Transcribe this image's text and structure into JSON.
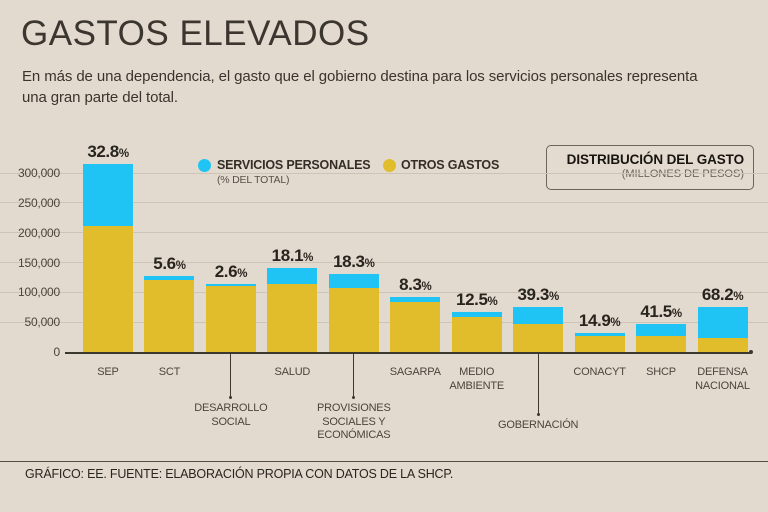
{
  "header": {
    "title": "GASTOS ELEVADOS",
    "subtitle_lines": [
      "En más de una dependencia, el gasto que el gobierno destina para los servicios personales representa",
      "una gran parte del total."
    ]
  },
  "legend": {
    "servicios": {
      "label": "SERVICIOS PERSONALES",
      "sublabel": "(% DEL TOTAL)",
      "color": "#1fc4f5"
    },
    "otros": {
      "label": "OTROS GASTOS",
      "color": "#e2bd2b"
    }
  },
  "info_box": {
    "title": "DISTRIBUCIÓN DEL GASTO",
    "subtitle": "(MILLONES DE PESOS)"
  },
  "colors": {
    "background": "#e3dacf",
    "bar_blue": "#1fc4f5",
    "bar_yellow": "#e2bd2b",
    "text_dark": "#332e27",
    "text_muted": "#4a443c",
    "gridline": "#cdc4b8",
    "axis": "#3d382f"
  },
  "chart_data": {
    "type": "bar",
    "stacked": true,
    "title": "DISTRIBUCIÓN DEL GASTO (MILLONES DE PESOS)",
    "units": "millones de pesos",
    "ylim": [
      0,
      320000
    ],
    "yticks": [
      0,
      50000,
      100000,
      150000,
      200000,
      250000,
      300000
    ],
    "ytick_labels": [
      "0",
      "50,000",
      "100,000",
      "150,000",
      "200,000",
      "250,000",
      "300,000"
    ],
    "grid": true,
    "legend_position": "top",
    "pct_suffix": "%",
    "series_names": [
      "SERVICIOS PERSONALES",
      "OTROS GASTOS"
    ],
    "categories": [
      "SEP",
      "SCT",
      "DESARROLLO SOCIAL",
      "SALUD",
      "PROVISIONES SOCIALES Y ECONÓMICAS",
      "SAGARPA",
      "MEDIO AMBIENTE",
      "GOBERNACIÓN",
      "CONACYT",
      "SHCP",
      "DEFENSA NACIONAL"
    ],
    "bars": [
      {
        "name": "SEP",
        "label_lines": [
          "SEP"
        ],
        "callout": false,
        "pct_label": "32.8",
        "servicios_personales_pct": 32.8,
        "total": 315000,
        "servicios_personales": 103320,
        "otros_gastos": 211680
      },
      {
        "name": "SCT",
        "label_lines": [
          "SCT"
        ],
        "callout": false,
        "pct_label": "5.6",
        "servicios_personales_pct": 5.6,
        "total": 127000,
        "servicios_personales": 7112,
        "otros_gastos": 119888
      },
      {
        "name": "DESARROLLO SOCIAL",
        "label_lines": [
          "DESARROLLO",
          "SOCIAL"
        ],
        "callout": true,
        "callout_depth": 45,
        "pct_label": "2.6",
        "servicios_personales_pct": 2.6,
        "total": 114000,
        "servicios_personales": 2964,
        "otros_gastos": 111036
      },
      {
        "name": "SALUD",
        "label_lines": [
          "SALUD"
        ],
        "callout": false,
        "pct_label": "18.1",
        "servicios_personales_pct": 18.1,
        "total": 140000,
        "servicios_personales": 25340,
        "otros_gastos": 114660
      },
      {
        "name": "PROVISIONES SOCIALES Y ECONÓMICAS",
        "label_lines": [
          "PROVISIONES",
          "SOCIALES Y",
          "ECONÓMICAS"
        ],
        "callout": true,
        "callout_depth": 45,
        "pct_label": "18.3",
        "servicios_personales_pct": 18.3,
        "total": 131000,
        "servicios_personales": 23973,
        "otros_gastos": 107027
      },
      {
        "name": "SAGARPA",
        "label_lines": [
          "SAGARPA"
        ],
        "callout": false,
        "pct_label": "8.3",
        "servicios_personales_pct": 8.3,
        "total": 92000,
        "servicios_personales": 7636,
        "otros_gastos": 84364
      },
      {
        "name": "MEDIO AMBIENTE",
        "label_lines": [
          "MEDIO",
          "AMBIENTE"
        ],
        "callout": false,
        "pct_label": "12.5",
        "servicios_personales_pct": 12.5,
        "total": 67000,
        "servicios_personales": 8375,
        "otros_gastos": 58625
      },
      {
        "name": "GOBERNACIÓN",
        "label_lines": [
          "GOBERNACIÓN"
        ],
        "callout": true,
        "callout_depth": 62,
        "pct_label": "39.3",
        "servicios_personales_pct": 39.3,
        "total": 76000,
        "servicios_personales": 29868,
        "otros_gastos": 46132
      },
      {
        "name": "CONACYT",
        "label_lines": [
          "CONACYT"
        ],
        "callout": false,
        "pct_label": "14.9",
        "servicios_personales_pct": 14.9,
        "total": 32000,
        "servicios_personales": 4768,
        "otros_gastos": 27232
      },
      {
        "name": "SHCP",
        "label_lines": [
          "SHCP"
        ],
        "callout": false,
        "pct_label": "41.5",
        "servicios_personales_pct": 41.5,
        "total": 47000,
        "servicios_personales": 19505,
        "otros_gastos": 27495
      },
      {
        "name": "DEFENSA NACIONAL",
        "label_lines": [
          "DEFENSA",
          "NACIONAL"
        ],
        "callout": false,
        "pct_label": "68.2",
        "servicios_personales_pct": 68.2,
        "total": 75000,
        "servicios_personales": 51150,
        "otros_gastos": 23850
      }
    ]
  },
  "footer": {
    "text": "GRÁFICO: EE. FUENTE: ELABORACIÓN PROPIA CON DATOS DE LA SHCP."
  }
}
